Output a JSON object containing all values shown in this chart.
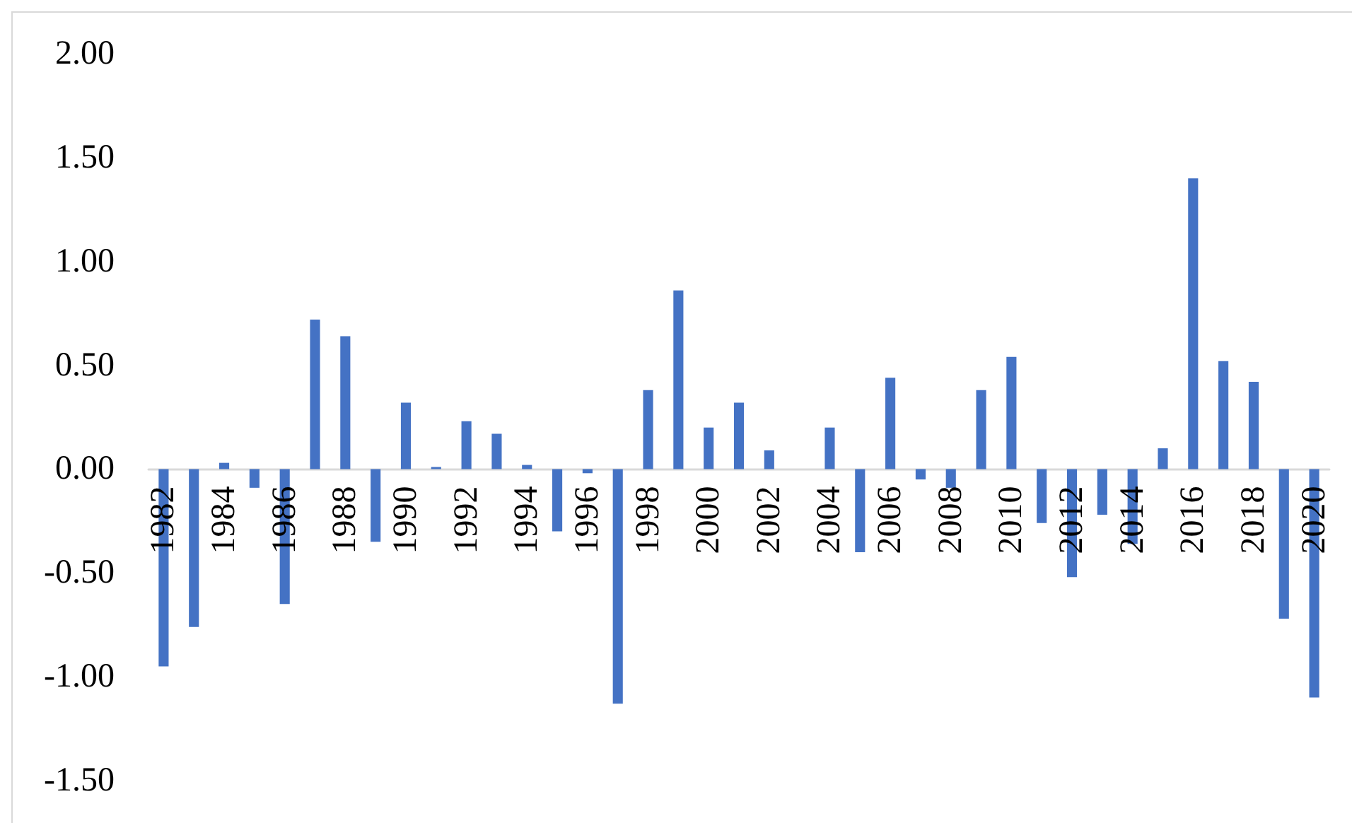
{
  "chart_data": {
    "type": "bar",
    "color": "#4472c4",
    "categories": [
      "1982",
      null,
      "1984",
      null,
      "1986",
      null,
      "1988",
      null,
      "1990",
      null,
      "1992",
      null,
      "1994",
      null,
      "1996",
      null,
      "1998",
      null,
      "2000",
      null,
      "2002",
      null,
      "2004",
      null,
      "2006",
      null,
      "2008",
      null,
      "2010",
      null,
      "2012",
      null,
      "2014",
      null,
      "2016",
      null,
      "2018",
      null,
      "2020"
    ],
    "values": [
      -0.95,
      -0.76,
      0.03,
      -0.09,
      -0.65,
      0.72,
      0.64,
      -0.35,
      0.32,
      0.01,
      0.23,
      0.17,
      0.02,
      -0.3,
      -0.02,
      -1.13,
      0.38,
      0.86,
      0.2,
      0.32,
      0.09,
      0.0,
      0.2,
      -0.4,
      0.44,
      -0.05,
      -0.09,
      0.38,
      0.54,
      -0.26,
      -0.52,
      -0.22,
      -0.36,
      0.1,
      1.4,
      0.52,
      0.42,
      -0.72,
      -1.1
    ],
    "ylim": [
      -1.5,
      2.0
    ],
    "yticks": [
      {
        "value": -1.5,
        "label": "-1.50"
      },
      {
        "value": -1.0,
        "label": "-1.00"
      },
      {
        "value": -0.5,
        "label": "-0.50"
      },
      {
        "value": 0,
        "label": "0.00"
      },
      {
        "value": 0.5,
        "label": "0.50"
      },
      {
        "value": 1.0,
        "label": "1.00"
      },
      {
        "value": 1.5,
        "label": "1.50"
      },
      {
        "value": 2.0,
        "label": "2.00"
      }
    ]
  }
}
